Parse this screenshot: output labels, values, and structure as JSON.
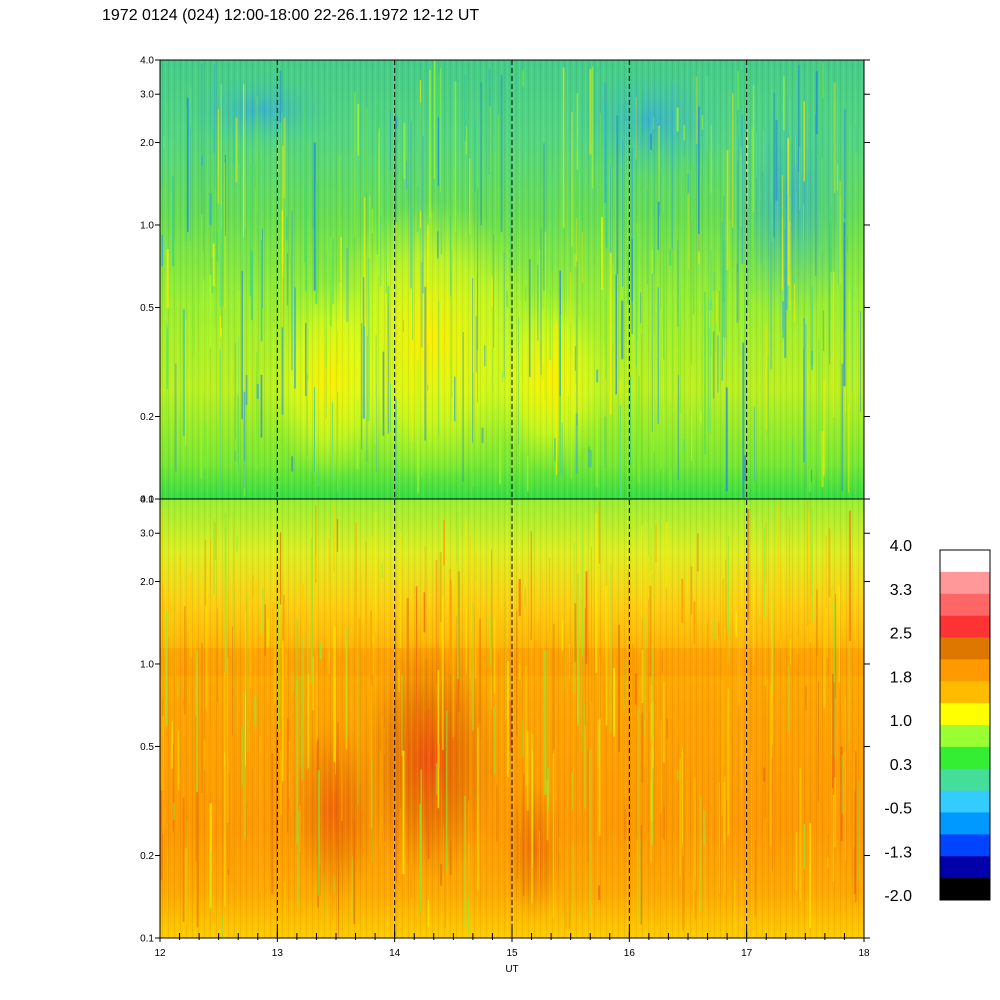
{
  "title": "1972 0124 (024) 12:00-18:00 22-26.1.1972  12-12 UT",
  "chart_data": [
    {
      "type": "heatmap",
      "panel": "top",
      "x_range": [
        12,
        18
      ],
      "y_scale": "log",
      "y_range": [
        0.1,
        4.0
      ],
      "y_ticks": [
        "0.1",
        "0.2",
        "0.5",
        "1.0",
        "2.0",
        "3.0",
        "4.0"
      ],
      "x_ticks": [],
      "grid": "vertical dashed lines at each hour",
      "dominant_colors": [
        "#33dd99",
        "#88ee33",
        "#ffff00"
      ]
    },
    {
      "type": "heatmap",
      "panel": "bottom",
      "x_range": [
        12,
        18
      ],
      "y_scale": "log",
      "y_range": [
        0.1,
        4.0
      ],
      "y_ticks": [
        "0.1",
        "0.2",
        "0.5",
        "1.0",
        "2.0",
        "3.0",
        "4.0"
      ],
      "x_ticks": [
        "12",
        "13",
        "14",
        "15",
        "16",
        "17",
        "18"
      ],
      "xlabel": "UT",
      "grid": "vertical dashed lines at each hour",
      "dominant_colors": [
        "#ff9900",
        "#ffbb00",
        "#ffff00",
        "#88ee33"
      ]
    }
  ],
  "colorbar": {
    "labels": [
      "4.0",
      "3.3",
      "2.5",
      "1.8",
      "1.0",
      "0.3",
      "-0.5",
      "-1.3",
      "-2.0"
    ],
    "colors": [
      "#ffffff",
      "#ff9999",
      "#ff6666",
      "#ff3333",
      "#dd7700",
      "#ff9900",
      "#ffbb00",
      "#ffff00",
      "#99ff33",
      "#33ee33",
      "#44dd99",
      "#33ccff",
      "#0099ff",
      "#0044ff",
      "#0000aa",
      "#000000"
    ]
  }
}
